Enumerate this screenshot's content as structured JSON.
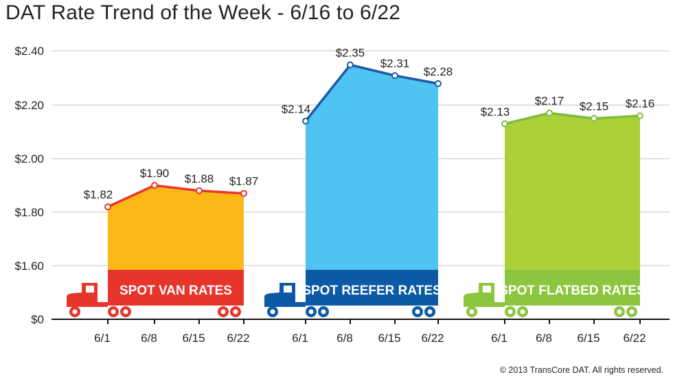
{
  "chart_data": {
    "type": "area",
    "title": "DAT Rate Trend of the Week - 6/16 to 6/22",
    "xlabel": "",
    "ylabel": "",
    "yticks": [
      "$0",
      "$1.60",
      "$1.80",
      "$2.00",
      "$2.20",
      "$2.40"
    ],
    "ylim": [
      1.6,
      2.4
    ],
    "axis_break": "$0 to $1.60",
    "grid": true,
    "categories": [
      "6/1",
      "6/8",
      "6/15",
      "6/22"
    ],
    "series": [
      {
        "name": "SPOT VAN RATES",
        "values": [
          1.82,
          1.9,
          1.88,
          1.87
        ],
        "labels": [
          "$1.82",
          "$1.90",
          "$1.88",
          "$1.87"
        ],
        "fill": "#fbb817",
        "line": "#e8352b",
        "truck": "#e8352b"
      },
      {
        "name": "SPOT REEFER RATES",
        "values": [
          2.14,
          2.35,
          2.31,
          2.28
        ],
        "labels": [
          "$2.14",
          "$2.35",
          "$2.31",
          "$2.28"
        ],
        "fill": "#4fc4f0",
        "line": "#1b5aa8",
        "truck": "#0c5aa6"
      },
      {
        "name": "SPOT FLATBED RATES",
        "values": [
          2.13,
          2.17,
          2.15,
          2.16
        ],
        "labels": [
          "$2.13",
          "$2.17",
          "$2.15",
          "$2.16"
        ],
        "fill": "#acd037",
        "line": "#7cbd3c",
        "truck": "#8cc63f"
      }
    ]
  },
  "footer": {
    "copyright": "© 2013 TransCore DAT. All rights reserved."
  }
}
